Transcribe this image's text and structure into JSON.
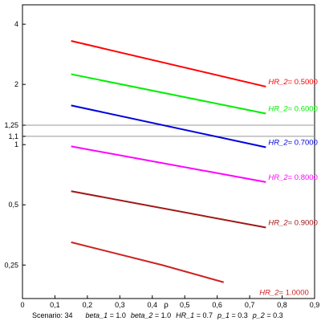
{
  "chart_data": {
    "type": "line",
    "xlabel": "ρ",
    "ylabel": "",
    "xlim": [
      0,
      0.9
    ],
    "ylim": [
      0.17,
      5.0
    ],
    "y_scale": "log",
    "x_ticks": [
      {
        "v": 0,
        "label": "0"
      },
      {
        "v": 0.1,
        "label": "0,1"
      },
      {
        "v": 0.2,
        "label": "0,2"
      },
      {
        "v": 0.3,
        "label": "0,3"
      },
      {
        "v": 0.4,
        "label": "0,4"
      },
      {
        "v": 0.5,
        "label": "0,5"
      },
      {
        "v": 0.6,
        "label": "0,6"
      },
      {
        "v": 0.7,
        "label": "0,7"
      },
      {
        "v": 0.8,
        "label": "0,8"
      },
      {
        "v": 0.9,
        "label": "0,9"
      }
    ],
    "y_ticks": [
      {
        "v": 4,
        "label": "4"
      },
      {
        "v": 2,
        "label": "2"
      },
      {
        "v": 1.25,
        "label": "1,25"
      },
      {
        "v": 1.1,
        "label": "1,1"
      },
      {
        "v": 1,
        "label": "1"
      },
      {
        "v": 0.5,
        "label": "0,5"
      },
      {
        "v": 0.25,
        "label": "0,25"
      }
    ],
    "reference_lines": [
      1.25,
      1.1
    ],
    "series": [
      {
        "label": "HR_2",
        "value": "0.5000",
        "color": "#ff0000",
        "x": [
          0.15,
          0.75
        ],
        "y": [
          3.3,
          1.95
        ]
      },
      {
        "label": "HR_2",
        "value": "0.6000",
        "color": "#00ee00",
        "x": [
          0.15,
          0.75
        ],
        "y": [
          2.25,
          1.43
        ]
      },
      {
        "label": "HR_2",
        "value": "0.7000",
        "color": "#0000dd",
        "x": [
          0.15,
          0.75
        ],
        "y": [
          1.57,
          0.97
        ]
      },
      {
        "label": "HR_2",
        "value": "0.8000",
        "color": "#ff00ff",
        "x": [
          0.15,
          0.75
        ],
        "y": [
          0.98,
          0.65
        ]
      },
      {
        "label": "HR_2",
        "value": "0.9000",
        "color": "#a01818",
        "x": [
          0.15,
          0.75
        ],
        "y": [
          0.585,
          0.385
        ]
      },
      {
        "label": "HR_2",
        "value": "1.0000",
        "color": "#cc2222",
        "x": [
          0.15,
          0.43,
          0.62
        ],
        "y": [
          0.325,
          0.25,
          0.205
        ]
      }
    ],
    "caption": {
      "scenario_label": "Scenario:",
      "scenario_value": "34",
      "params": [
        {
          "name": "beta_1",
          "value": "1.0"
        },
        {
          "name": "beta_2",
          "value": "1.0"
        },
        {
          "name": "HR_1",
          "value": "0.7"
        },
        {
          "name": "p_1",
          "value": "0.3"
        },
        {
          "name": "p_2",
          "value": "0.3"
        }
      ]
    }
  }
}
